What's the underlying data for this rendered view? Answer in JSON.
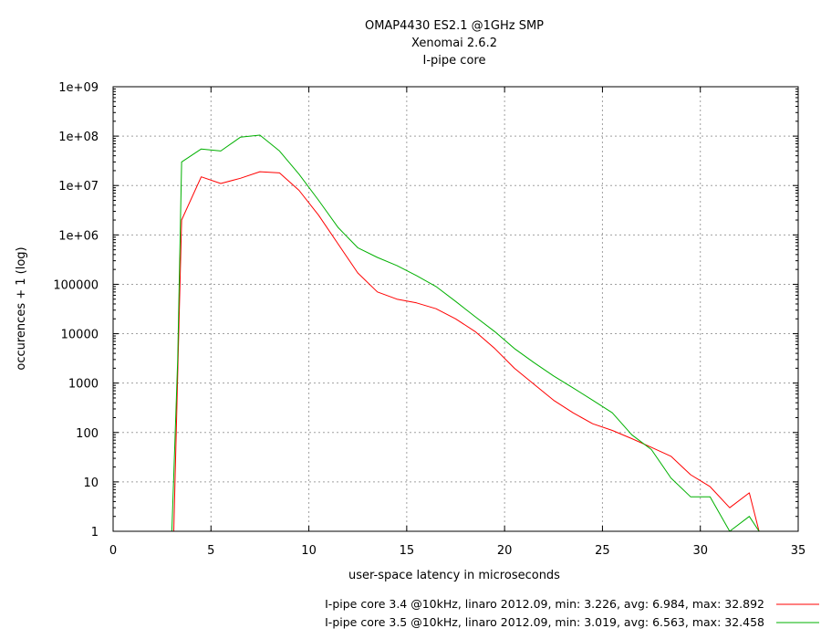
{
  "chart_data": {
    "type": "line",
    "title": [
      "OMAP4430 ES2.1 @1GHz SMP",
      "Xenomai 2.6.2",
      "I-pipe core"
    ],
    "xlabel": "user-space latency in microseconds",
    "ylabel": "occurences + 1 (log)",
    "xlim": [
      0,
      35
    ],
    "ylim": [
      1,
      1000000000
    ],
    "yscale": "log",
    "grid": true,
    "legend_position": "bottom-right",
    "x_ticks": [
      0,
      5,
      10,
      15,
      20,
      25,
      30,
      35
    ],
    "x_tick_labels": [
      "0",
      "5",
      "10",
      "15",
      "20",
      "25",
      "30",
      "35"
    ],
    "y_ticks": [
      1,
      10,
      100,
      1000,
      10000,
      100000,
      1000000,
      10000000,
      100000000,
      1000000000
    ],
    "y_tick_labels": [
      "1",
      "10",
      "100",
      "1000",
      "10000",
      "100000",
      "1e+06",
      "1e+07",
      "1e+08",
      "1e+09"
    ],
    "series": [
      {
        "name": "I-pipe core 3.4 @10kHz, linaro 2012.09, min: 3.226, avg: 6.984, max: 32.892",
        "color": "#ff0000",
        "points": [
          [
            3.1,
            1
          ],
          [
            3.3,
            1500
          ],
          [
            3.5,
            2000000
          ],
          [
            4.5,
            15000000
          ],
          [
            5.5,
            11000000
          ],
          [
            6.5,
            14000000
          ],
          [
            7.5,
            19000000
          ],
          [
            8.5,
            18000000
          ],
          [
            9.5,
            8000000
          ],
          [
            10.5,
            2500000
          ],
          [
            11.5,
            650000
          ],
          [
            12.5,
            170000
          ],
          [
            13.5,
            70000
          ],
          [
            14.5,
            50000
          ],
          [
            15.5,
            42000
          ],
          [
            16.5,
            32000
          ],
          [
            17.5,
            20000
          ],
          [
            18.5,
            11000
          ],
          [
            19.5,
            5000
          ],
          [
            20.5,
            2000
          ],
          [
            21.5,
            950
          ],
          [
            22.5,
            450
          ],
          [
            23.5,
            250
          ],
          [
            24.5,
            150
          ],
          [
            25.5,
            110
          ],
          [
            26.5,
            75
          ],
          [
            27.5,
            50
          ],
          [
            28.5,
            33
          ],
          [
            29.5,
            14
          ],
          [
            30.5,
            8
          ],
          [
            31.5,
            3
          ],
          [
            32.5,
            6
          ],
          [
            33.0,
            1
          ]
        ]
      },
      {
        "name": "I-pipe core 3.5 @10kHz, linaro 2012.09, min: 3.019, avg: 6.563, max: 32.458",
        "color": "#00b000",
        "points": [
          [
            3.0,
            1
          ],
          [
            3.3,
            3000
          ],
          [
            3.5,
            30000000
          ],
          [
            4.5,
            55000000
          ],
          [
            5.5,
            50000000
          ],
          [
            6.5,
            95000000
          ],
          [
            7.5,
            105000000
          ],
          [
            8.5,
            50000000
          ],
          [
            9.5,
            17000000
          ],
          [
            10.5,
            5000000
          ],
          [
            11.5,
            1400000
          ],
          [
            12.5,
            550000
          ],
          [
            13.5,
            350000
          ],
          [
            14.5,
            240000
          ],
          [
            15.5,
            150000
          ],
          [
            16.5,
            90000
          ],
          [
            17.5,
            45000
          ],
          [
            18.5,
            22000
          ],
          [
            19.5,
            11000
          ],
          [
            20.5,
            5000
          ],
          [
            21.5,
            2600
          ],
          [
            22.5,
            1400
          ],
          [
            23.5,
            800
          ],
          [
            24.5,
            450
          ],
          [
            25.5,
            250
          ],
          [
            26.5,
            90
          ],
          [
            27.5,
            45
          ],
          [
            28.5,
            12
          ],
          [
            29.5,
            5
          ],
          [
            30.5,
            5
          ],
          [
            31.5,
            1
          ],
          [
            32.5,
            2
          ],
          [
            33.0,
            1
          ]
        ]
      }
    ]
  }
}
